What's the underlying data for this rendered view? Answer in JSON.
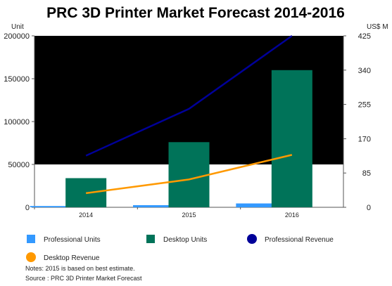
{
  "chart_data": {
    "type": "bar",
    "title": "PRC 3D Printer Market Forecast 2014-2016",
    "categories": [
      "2014",
      "2015",
      "2016"
    ],
    "left_axis": {
      "label": "Unit",
      "ticks": [
        "200000",
        "150000",
        "100000",
        "50000",
        "0"
      ],
      "ylim": [
        0,
        200000
      ]
    },
    "right_axis": {
      "label": "US$ M",
      "ticks": [
        "425",
        "340",
        "255",
        "170",
        "85",
        "0"
      ],
      "ylim": [
        0,
        425
      ]
    },
    "series": [
      {
        "name": "Professional Units",
        "kind": "bar",
        "axis": "left",
        "color": "#3399ff",
        "values": [
          1500,
          2500,
          4500
        ]
      },
      {
        "name": "Desktop Units",
        "kind": "bar",
        "axis": "left",
        "color": "#007359",
        "values": [
          34000,
          76000,
          160000
        ]
      },
      {
        "name": "Professional Revenue",
        "kind": "line",
        "axis": "right",
        "color": "#000099",
        "values": [
          128,
          244,
          425
        ]
      },
      {
        "name": "Desktop Revenue",
        "kind": "line",
        "axis": "right",
        "color": "#ff9900",
        "values": [
          35,
          69,
          130
        ]
      }
    ],
    "legend_position": "bottom",
    "notes": [
      "Notes: 2015 is based on best estimate.",
      "Source : PRC 3D Printer Market Forecast"
    ]
  }
}
